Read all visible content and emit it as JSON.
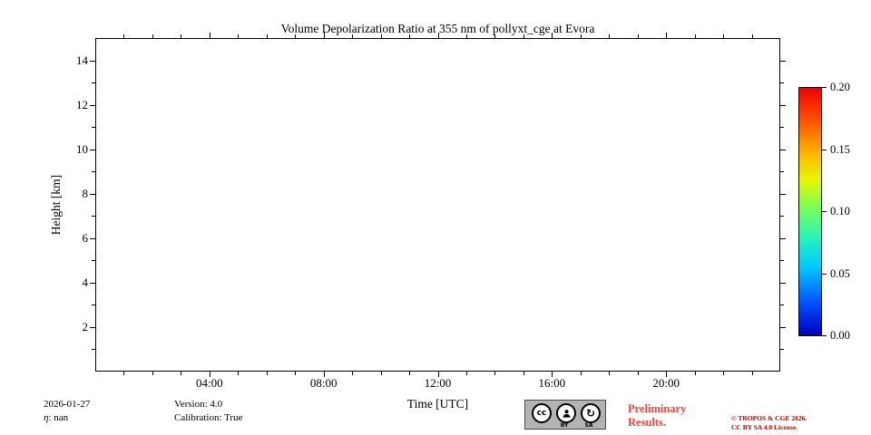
{
  "chart_data": {
    "type": "heatmap",
    "title": "Volume Depolarization Ratio at 355 nm of pollyxt_cge at Evora",
    "xlabel": "Time [UTC]",
    "ylabel": "Height [km]",
    "x_range_hours": [
      0,
      24
    ],
    "x_ticks": [
      {
        "hour": 4,
        "label": "04:00"
      },
      {
        "hour": 8,
        "label": "08:00"
      },
      {
        "hour": 12,
        "label": "12:00"
      },
      {
        "hour": 16,
        "label": "16:00"
      },
      {
        "hour": 20,
        "label": "20:00"
      }
    ],
    "x_minor_every_hours": 1,
    "ylim": [
      0,
      15
    ],
    "y_ticks": [
      {
        "value": 2,
        "label": "2"
      },
      {
        "value": 4,
        "label": "4"
      },
      {
        "value": 6,
        "label": "6"
      },
      {
        "value": 8,
        "label": "8"
      },
      {
        "value": 10,
        "label": "10"
      },
      {
        "value": 12,
        "label": "12"
      },
      {
        "value": 14,
        "label": "14"
      }
    ],
    "y_minor_every_km": 1,
    "grid": false,
    "values": null,
    "series": [],
    "plot_background": "#ffffff",
    "colorbar": {
      "min": 0.0,
      "max": 0.2,
      "colormap": "jet",
      "ticks": [
        {
          "value": 0.2,
          "label": "0.20"
        },
        {
          "value": 0.15,
          "label": "0.15"
        },
        {
          "value": 0.1,
          "label": "0.10"
        },
        {
          "value": 0.05,
          "label": "0.05"
        },
        {
          "value": 0.0,
          "label": "0.00"
        }
      ],
      "gradient_stops": [
        {
          "pos": 0.0,
          "color": "#0000bf"
        },
        {
          "pos": 0.13,
          "color": "#0050ff"
        },
        {
          "pos": 0.28,
          "color": "#00ccff"
        },
        {
          "pos": 0.4,
          "color": "#2bf5b4"
        },
        {
          "pos": 0.52,
          "color": "#7dff54"
        },
        {
          "pos": 0.63,
          "color": "#e8f500"
        },
        {
          "pos": 0.74,
          "color": "#ffb400"
        },
        {
          "pos": 0.87,
          "color": "#ff5000"
        },
        {
          "pos": 1.0,
          "color": "#f00000"
        }
      ]
    }
  },
  "footer": {
    "date": "2026-01-27",
    "eta_symbol": "η",
    "eta_value": ": nan",
    "version": "Version: 4.0",
    "calibration": "Calibration: True",
    "preliminary_line1": "Preliminary",
    "preliminary_line2": "Results.",
    "copyright_line1": "© TROPOS & CGE 2026.",
    "copyright_line2": "CC BY SA 4.0 License."
  },
  "badge": {
    "cc": "cc",
    "by": "BY",
    "sa": "SA",
    "sa_arrow": "↻"
  },
  "colors": {
    "axis": "#000000",
    "preliminary_red": "#f8423e",
    "copyright_red": "#c00000",
    "badge_background": "#b3b3b3",
    "plot_background": "#ffffff"
  }
}
